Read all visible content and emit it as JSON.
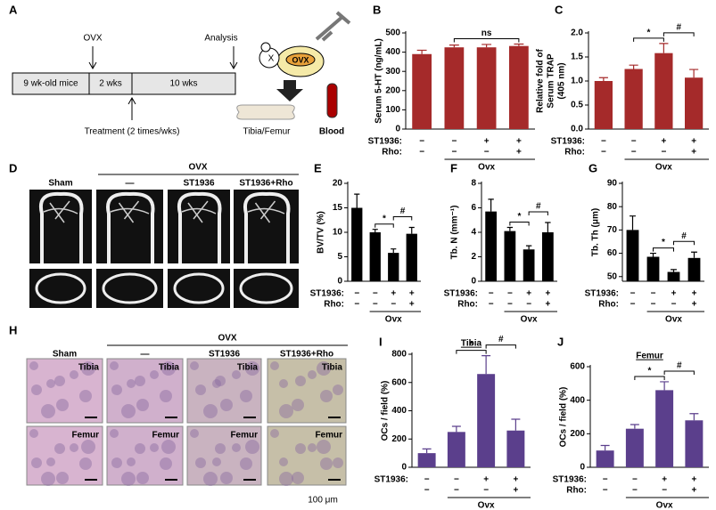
{
  "panels": {
    "A": {
      "letter": "A",
      "ovx": "OVX",
      "analysis": "Analysis",
      "stages": [
        "9 wk-old mice",
        "2 wks",
        "10 wks"
      ],
      "treatment": "Treatment (2 times/wks)",
      "mouse_x": "X",
      "mouse_label": "OVX",
      "tissue": "Tibia/Femur",
      "blood": "Blood"
    },
    "D": {
      "letter": "D",
      "group": "OVX",
      "columns": [
        "Sham",
        "—",
        "ST1936",
        "ST1936+Rho"
      ]
    },
    "H": {
      "letter": "H",
      "group": "OVX",
      "columns": [
        "Sham",
        "—",
        "ST1936",
        "ST1936+Rho"
      ],
      "row_labels": [
        "Tibia",
        "Femur"
      ],
      "scale_bar": "100 μm"
    }
  },
  "chart_data": [
    {
      "type": "bar",
      "panel": "B",
      "ylabel": [
        "Serum 5-HT (ng/mL)"
      ],
      "color": "#a52a2a",
      "values": [
        390,
        425,
        425,
        432
      ],
      "errors": [
        20,
        12,
        15,
        10
      ],
      "ylim": [
        0,
        500
      ],
      "yticks": [
        0,
        100,
        200,
        300,
        400,
        500
      ],
      "treatments": [
        {
          "label": "ST1936:",
          "marks": [
            "−",
            "−",
            "+",
            "+"
          ]
        },
        {
          "label": "Rho:",
          "marks": [
            "−",
            "−",
            "−",
            "+"
          ]
        }
      ],
      "group_label": "Ovx",
      "annotations": [
        "ns"
      ]
    },
    {
      "type": "bar",
      "panel": "C",
      "ylabel": [
        "Relative fold of",
        "Serum TRAP",
        "(405 nm)"
      ],
      "color": "#a52a2a",
      "values": [
        1.0,
        1.25,
        1.58,
        1.07
      ],
      "errors": [
        0.07,
        0.08,
        0.2,
        0.17
      ],
      "ylim": [
        0,
        2.0
      ],
      "yticks": [
        {
          "value": 0,
          "label": "0.0"
        },
        0.5,
        {
          "value": 1,
          "label": "1.0"
        },
        1.5,
        {
          "value": 2,
          "label": "2.0"
        }
      ],
      "treatments": [
        {
          "label": "ST1936:",
          "marks": [
            "−",
            "−",
            "+",
            "+"
          ]
        },
        {
          "label": "Rho:",
          "marks": [
            "−",
            "−",
            "−",
            "+"
          ]
        }
      ],
      "group_label": "Ovx",
      "annotations": [
        "*",
        "#"
      ]
    },
    {
      "type": "bar",
      "panel": "E",
      "ylabel": [
        "BV/TV (%)"
      ],
      "color": "#000000",
      "values": [
        15,
        10,
        5.8,
        9.7
      ],
      "errors": [
        2.8,
        0.6,
        0.8,
        1.3
      ],
      "ylim": [
        0,
        20
      ],
      "yticks": [
        0,
        5,
        10,
        15,
        20
      ],
      "treatments": [
        {
          "label": "ST1936:",
          "marks": [
            "−",
            "−",
            "+",
            "+"
          ]
        },
        {
          "label": "Rho:",
          "marks": [
            "−",
            "−",
            "−",
            "+"
          ]
        }
      ],
      "group_label": "Ovx",
      "annotations": [
        "*",
        "#"
      ]
    },
    {
      "type": "bar",
      "panel": "F",
      "ylabel": [
        "Tb. N (mm⁻¹)"
      ],
      "color": "#000000",
      "values": [
        5.7,
        4.1,
        2.6,
        4.0
      ],
      "errors": [
        1.0,
        0.3,
        0.3,
        0.8
      ],
      "ylim": [
        0,
        8
      ],
      "yticks": [
        0,
        2,
        4,
        6,
        8
      ],
      "treatments": [
        {
          "label": "ST1936:",
          "marks": [
            "−",
            "−",
            "+",
            "+"
          ]
        },
        {
          "label": "Rho:",
          "marks": [
            "−",
            "−",
            "−",
            "+"
          ]
        }
      ],
      "group_label": "Ovx",
      "annotations": [
        "*",
        "#"
      ]
    },
    {
      "type": "bar",
      "panel": "G",
      "ylabel": [
        "Tb. Th (μm)"
      ],
      "color": "#000000",
      "values": [
        70,
        58.5,
        52,
        58
      ],
      "errors": [
        6,
        1.5,
        1,
        2.5
      ],
      "ylim": [
        48,
        90
      ],
      "yticks": [
        50,
        60,
        70,
        80,
        90
      ],
      "treatments": [
        {
          "label": "ST1936:",
          "marks": [
            "−",
            "−",
            "+",
            "+"
          ]
        },
        {
          "label": "Rho:",
          "marks": [
            "−",
            "−",
            "−",
            "+"
          ]
        }
      ],
      "group_label": "Ovx",
      "annotations": [
        "*",
        "#"
      ]
    },
    {
      "type": "bar",
      "panel": "I",
      "title": "Tibia",
      "ylabel": [
        "OCs / field (%)"
      ],
      "color": "#5b3f8c",
      "values": [
        100,
        250,
        660,
        260
      ],
      "errors": [
        30,
        40,
        130,
        80
      ],
      "ylim": [
        0,
        800
      ],
      "yticks": [
        0,
        200,
        400,
        600,
        800
      ],
      "treatments": [
        {
          "label": "ST1936:",
          "marks": [
            "−",
            "−",
            "+",
            "+"
          ]
        },
        {
          "marks": [
            "−",
            "−",
            "−",
            "+"
          ]
        }
      ],
      "group_label": "Ovx",
      "annotations": [
        "*",
        "#"
      ]
    },
    {
      "type": "bar",
      "panel": "J",
      "title": "Femur",
      "ylabel": [
        "OCs / field (%)"
      ],
      "color": "#5b3f8c",
      "values": [
        100,
        230,
        460,
        280
      ],
      "errors": [
        30,
        25,
        50,
        40
      ],
      "ylim": [
        0,
        600
      ],
      "yticks": [
        0,
        200,
        400,
        600
      ],
      "treatments": [
        {
          "label": "ST1936:",
          "marks": [
            "−",
            "−",
            "+",
            "+"
          ]
        },
        {
          "label": "Rho:",
          "marks": [
            "−",
            "−",
            "−",
            "+"
          ]
        }
      ],
      "group_label": "Ovx",
      "annotations": [
        "*",
        "#"
      ]
    }
  ]
}
